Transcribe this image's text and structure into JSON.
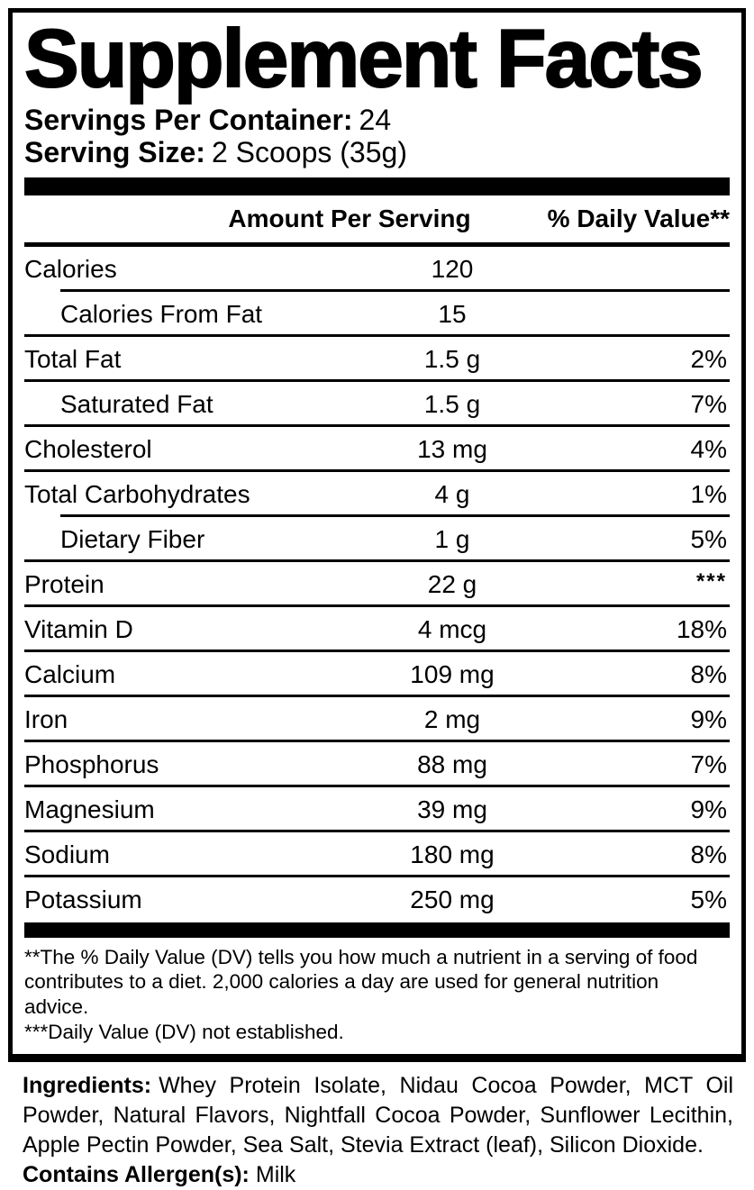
{
  "title": "Supplement Facts",
  "servings_per_container": {
    "label": "Servings Per Container:",
    "value": "24"
  },
  "serving_size": {
    "label": "Serving Size:",
    "value": "2 Scoops (35g)"
  },
  "columns": {
    "amount": "Amount Per Serving",
    "daily_value": "% Daily Value**"
  },
  "rows": [
    {
      "name": "Calories",
      "amount": "120",
      "dv": "",
      "indent": false,
      "sep": "indented",
      "dv_super": false
    },
    {
      "name": "Calories From Fat",
      "amount": "15",
      "dv": "",
      "indent": true,
      "sep": "full",
      "dv_super": false
    },
    {
      "name": "Total Fat",
      "amount": "1.5 g",
      "dv": "2%",
      "indent": false,
      "sep": "full",
      "dv_super": false
    },
    {
      "name": "Saturated Fat",
      "amount": "1.5 g",
      "dv": "7%",
      "indent": true,
      "sep": "full",
      "dv_super": false
    },
    {
      "name": "Cholesterol",
      "amount": "13 mg",
      "dv": "4%",
      "indent": false,
      "sep": "full",
      "dv_super": false
    },
    {
      "name": "Total Carbohydrates",
      "amount": "4 g",
      "dv": "1%",
      "indent": false,
      "sep": "indented",
      "dv_super": false
    },
    {
      "name": "Dietary Fiber",
      "amount": "1 g",
      "dv": "5%",
      "indent": true,
      "sep": "full",
      "dv_super": false
    },
    {
      "name": "Protein",
      "amount": "22 g",
      "dv": "***",
      "indent": false,
      "sep": "full",
      "dv_super": true
    },
    {
      "name": "Vitamin D",
      "amount": "4 mcg",
      "dv": "18%",
      "indent": false,
      "sep": "full",
      "dv_super": false
    },
    {
      "name": "Calcium",
      "amount": "109 mg",
      "dv": "8%",
      "indent": false,
      "sep": "full",
      "dv_super": false
    },
    {
      "name": "Iron",
      "amount": "2 mg",
      "dv": "9%",
      "indent": false,
      "sep": "full",
      "dv_super": false
    },
    {
      "name": "Phosphorus",
      "amount": "88 mg",
      "dv": "7%",
      "indent": false,
      "sep": "full",
      "dv_super": false
    },
    {
      "name": "Magnesium",
      "amount": "39 mg",
      "dv": "9%",
      "indent": false,
      "sep": "full",
      "dv_super": false
    },
    {
      "name": "Sodium",
      "amount": "180 mg",
      "dv": "8%",
      "indent": false,
      "sep": "full",
      "dv_super": false
    },
    {
      "name": "Potassium",
      "amount": "250 mg",
      "dv": "5%",
      "indent": false,
      "sep": "none",
      "dv_super": false
    }
  ],
  "footnotes": [
    "**The % Daily Value (DV) tells you how much a nutrient in a serving of food contributes to a diet. 2,000 calories a day are used for general nutrition advice.",
    "***Daily Value (DV) not established."
  ],
  "ingredients": {
    "label": "Ingredients:",
    "text": "Whey Protein Isolate, Nidau Cocoa Powder, MCT Oil Powder, Natural Flavors, Nightfall Cocoa Powder, Sunflower Lecithin, Apple Pectin Powder, Sea Salt, Stevia Extract (leaf), Silicon Dioxide."
  },
  "allergens": {
    "label": "Contains Allergen(s):",
    "value": "Milk"
  }
}
